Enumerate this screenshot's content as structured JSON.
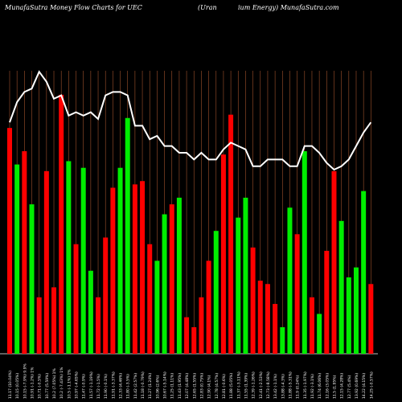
{
  "header": {
    "left": "MunafaSutra  Money Flow  Charts for UEC",
    "middle": "(Uran",
    "right": "ium Energy) MunafaSutra.com"
  },
  "colors": {
    "background": "#000000",
    "up": "#00ee00",
    "down": "#ff0000",
    "line": "#ffffff",
    "grid": "#a0522d",
    "label": "#ffffff"
  },
  "chart_data": {
    "type": "bar",
    "x_labels": [
      "11.17 (10.04%)",
      "10.15 (0.05%)",
      "10.15 (-7.9%) 9.9%",
      "10.91 (-1.2%) 1%",
      "10.71 (-0.5%)",
      "10.77 (5.59%)",
      "10.2 (7.05%) 1%",
      "10.2 (-7.43%) 1%",
      "10.5 (-1.1%) 1%",
      "10.97 (-4.65%)",
      "11.47 (-0.9%)",
      "11.57 (-1.19%)",
      "11.72 (-1.5%)",
      "11.90 (-0.1%)",
      "11.91 (-3.37%)",
      "12.33 (4.46%)",
      "11.80 (-3.5%)",
      "11.42 (2.57%)",
      "11.18 (-0.79%)",
      "11.27 (1.24%)",
      "10.96 (2.6%)",
      "10.67 (-5.14%)",
      "11.25 (1.11%)",
      "11.43 (1.95%)",
      "12.07 (4.48%)",
      "12.65 (1.55%)",
      "12.83 (0.75%)",
      "12.90 (4.1%)",
      "12.78 (4.57%)",
      "12.81 (-0.6%)",
      "11.88 (5.05%)",
      "11.37 (-3.11%)",
      "11.55 (1.39%)",
      "12.39 (-1.26%)",
      "12.41 (-2.53%)",
      "12.73 (-8.58%)",
      "13.42 (-1.1%)",
      "13.88 (-4.3%)",
      "11.88 (-5.31%)",
      "11.9 (0.24%)",
      "11.35 (-1.97%)",
      "11.92 (-3.1%)",
      "11.74 (6.06%)",
      "12.16 (3.05%)",
      "11.5 (1.95%)",
      "12.15 (4.28%)",
      "12.77 (5.4%)",
      "13.92 (0.69%)",
      "14.22 (4.15%)",
      "14.25 (-0.57%)"
    ],
    "series": [
      {
        "values": [
          68,
          57,
          61,
          45,
          17,
          55,
          20,
          78,
          58,
          33,
          56,
          25,
          17,
          35,
          50,
          56,
          71,
          51,
          52,
          33,
          28,
          42,
          45,
          47,
          11,
          8,
          17,
          28,
          37,
          60,
          72,
          41,
          47,
          32,
          22,
          21,
          15,
          8,
          44,
          36,
          61,
          17,
          12,
          31,
          55,
          40,
          23,
          26,
          49,
          21
        ],
        "colors": [
          "r",
          "g",
          "r",
          "g",
          "r",
          "r",
          "r",
          "r",
          "g",
          "r",
          "g",
          "g",
          "r",
          "r",
          "r",
          "g",
          "g",
          "r",
          "r",
          "r",
          "g",
          "g",
          "r",
          "g",
          "r",
          "r",
          "r",
          "r",
          "g",
          "r",
          "r",
          "g",
          "g",
          "r",
          "r",
          "r",
          "r",
          "g",
          "g",
          "r",
          "g",
          "r",
          "g",
          "r",
          "r",
          "g",
          "g",
          "g",
          "g",
          "r"
        ]
      },
      {
        "values": [
          59,
          65,
          68,
          69,
          74,
          71,
          66,
          67,
          61,
          62,
          61,
          62,
          60,
          67,
          68,
          68,
          67,
          58,
          58,
          54,
          55,
          52,
          52,
          50,
          50,
          48,
          50,
          48,
          48,
          51,
          53,
          52,
          51,
          46,
          46,
          48,
          48,
          48,
          46,
          46,
          52,
          52,
          50,
          47,
          45,
          46,
          48,
          52,
          56,
          59
        ]
      }
    ]
  }
}
